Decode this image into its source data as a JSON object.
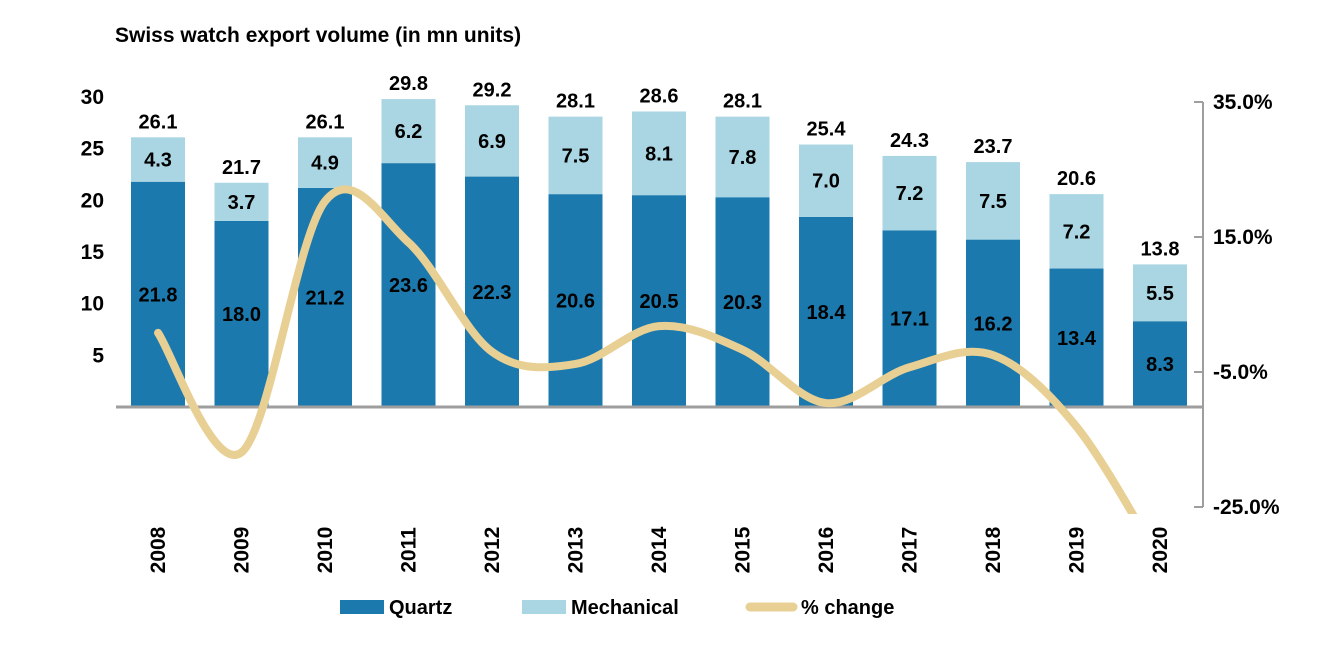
{
  "chart_data": {
    "type": "combo",
    "subtypes": [
      "stacked-bar",
      "line"
    ],
    "title": "Swiss watch export volume  (in mn units)",
    "categories": [
      "2008",
      "2009",
      "2010",
      "2011",
      "2012",
      "2013",
      "2014",
      "2015",
      "2016",
      "2017",
      "2018",
      "2019",
      "2020"
    ],
    "stacked_bar": {
      "series": [
        {
          "name": "Quartz",
          "color": "#1b79ad",
          "label_color": "#ffffff",
          "values": [
            21.8,
            18.0,
            21.2,
            23.6,
            22.3,
            20.6,
            20.5,
            20.3,
            18.4,
            17.1,
            16.2,
            13.4,
            8.3
          ]
        },
        {
          "name": "Mechanical",
          "color": "#aad6e3",
          "label_color": "#000000",
          "values": [
            4.3,
            3.7,
            4.9,
            6.2,
            6.9,
            7.5,
            8.1,
            7.8,
            7.0,
            7.2,
            7.5,
            7.2,
            5.5
          ]
        }
      ],
      "totals": [
        26.1,
        21.7,
        26.1,
        29.8,
        29.2,
        28.1,
        28.6,
        28.1,
        25.4,
        24.3,
        23.7,
        20.6,
        13.8
      ],
      "totals_label_color": "#000000"
    },
    "line": {
      "name": "% change",
      "color": "#e8cf94",
      "axis": "right",
      "values": [
        0.8,
        -16.9,
        20.3,
        14.2,
        -2.0,
        -3.8,
        1.8,
        -1.7,
        -9.6,
        -4.3,
        -2.5,
        -13.1,
        -33.0
      ]
    },
    "left_axis": {
      "ticks": [
        30,
        25,
        20,
        15,
        10,
        5
      ],
      "range": [
        0,
        30
      ],
      "gridlines": false
    },
    "right_axis": {
      "tick_labels": [
        "35.0%",
        "15.0%",
        "-5.0%",
        "-25.0%"
      ],
      "tick_values": [
        35,
        15,
        -5,
        -25
      ],
      "range": [
        -25,
        35
      ]
    },
    "legend": {
      "position": "bottom",
      "entries": [
        {
          "label": "Quartz",
          "swatch": "rect",
          "color": "#1b79ad"
        },
        {
          "label": "Mechanical",
          "swatch": "rect",
          "color": "#aad6e3"
        },
        {
          "label": "% change",
          "swatch": "line",
          "color": "#e8cf94"
        }
      ]
    },
    "axis_line_color": "#9e9e9e",
    "grid": false
  }
}
